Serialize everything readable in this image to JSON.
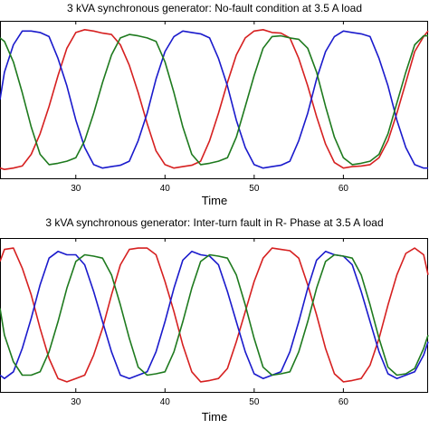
{
  "chart_data": [
    {
      "type": "line",
      "title": "3 kVA synchronous generator: No-fault condition at 3.5 A load",
      "xlabel": "Time",
      "ylabel": "",
      "xlim": [
        21.5,
        69.5
      ],
      "ylim": [
        -1.15,
        1.15
      ],
      "xticks": [
        30,
        40,
        50,
        60
      ],
      "grid": false,
      "series": [
        {
          "color": "#d62020",
          "x": [
            21.5,
            22,
            23,
            24,
            25,
            26,
            27,
            28,
            29,
            30,
            31,
            32,
            33,
            34,
            35,
            36,
            37,
            38,
            39,
            40,
            41,
            42,
            43,
            44,
            45,
            46,
            47,
            48,
            49,
            50,
            51,
            52,
            53,
            54,
            55,
            56,
            57,
            58,
            59,
            60,
            61,
            62,
            63,
            64,
            65,
            66,
            67,
            68,
            69,
            69.5
          ],
          "y": [
            -1.0,
            -1.02,
            -1.0,
            -0.97,
            -0.8,
            -0.5,
            -0.1,
            0.35,
            0.75,
            0.98,
            1.02,
            1.0,
            0.97,
            0.95,
            0.8,
            0.5,
            0.1,
            -0.35,
            -0.75,
            -0.95,
            -1.0,
            -0.98,
            -0.96,
            -0.9,
            -0.6,
            -0.2,
            0.25,
            0.65,
            0.9,
            1.0,
            1.02,
            0.98,
            0.97,
            0.9,
            0.6,
            0.2,
            -0.25,
            -0.65,
            -0.92,
            -1.0,
            -0.98,
            -0.97,
            -0.95,
            -0.85,
            -0.6,
            -0.2,
            0.25,
            0.7,
            0.92,
            1.0
          ]
        },
        {
          "color": "#1a1acc",
          "x": [
            21.5,
            22,
            23,
            24,
            25,
            26,
            27,
            28,
            29,
            30,
            31,
            32,
            33,
            34,
            35,
            36,
            37,
            38,
            39,
            40,
            41,
            42,
            43,
            44,
            45,
            46,
            47,
            48,
            49,
            50,
            51,
            52,
            53,
            54,
            55,
            56,
            57,
            58,
            59,
            60,
            61,
            62,
            63,
            64,
            65,
            66,
            67,
            68,
            69,
            69.5
          ],
          "y": [
            0.0,
            0.4,
            0.8,
            1.0,
            1.0,
            0.98,
            0.92,
            0.6,
            0.2,
            -0.3,
            -0.7,
            -0.95,
            -1.0,
            -0.98,
            -0.96,
            -0.9,
            -0.6,
            -0.2,
            0.3,
            0.7,
            0.92,
            1.0,
            0.98,
            0.96,
            0.9,
            0.6,
            0.2,
            -0.3,
            -0.7,
            -0.95,
            -1.0,
            -0.98,
            -0.96,
            -0.9,
            -0.6,
            -0.2,
            0.3,
            0.7,
            0.92,
            1.0,
            0.98,
            0.96,
            0.92,
            0.6,
            0.2,
            -0.3,
            -0.7,
            -0.95,
            -1.0,
            -1.0
          ]
        },
        {
          "color": "#1e7a1e",
          "x": [
            21.5,
            22,
            23,
            24,
            25,
            26,
            27,
            28,
            29,
            30,
            31,
            32,
            33,
            34,
            35,
            36,
            37,
            38,
            39,
            40,
            41,
            42,
            43,
            44,
            45,
            46,
            47,
            48,
            49,
            50,
            51,
            52,
            53,
            54,
            55,
            56,
            57,
            58,
            59,
            60,
            61,
            62,
            63,
            64,
            65,
            66,
            67,
            68,
            69,
            69.5
          ],
          "y": [
            0.9,
            0.85,
            0.55,
            0.1,
            -0.4,
            -0.8,
            -0.95,
            -0.93,
            -0.9,
            -0.85,
            -0.6,
            -0.2,
            0.25,
            0.65,
            0.9,
            0.95,
            0.93,
            0.9,
            0.85,
            0.55,
            0.1,
            -0.4,
            -0.8,
            -0.95,
            -0.93,
            -0.9,
            -0.85,
            -0.55,
            -0.1,
            0.35,
            0.75,
            0.92,
            0.93,
            0.9,
            0.88,
            0.75,
            0.4,
            -0.1,
            -0.55,
            -0.85,
            -0.95,
            -0.93,
            -0.9,
            -0.8,
            -0.5,
            -0.05,
            0.4,
            0.8,
            0.93,
            0.93
          ]
        }
      ]
    },
    {
      "type": "line",
      "title": "3 kVA synchronous generator: Inter-turn fault in R- Phase  at 3.5 A load",
      "xlabel": "Time",
      "ylabel": "",
      "xlim": [
        21.5,
        69.5
      ],
      "ylim": [
        -1.15,
        1.15
      ],
      "xticks": [
        30,
        40,
        50,
        60
      ],
      "grid": false,
      "series": [
        {
          "color": "#d62020",
          "x": [
            21.5,
            22,
            23,
            24,
            25,
            26,
            27,
            28,
            29,
            30,
            31,
            32,
            33,
            34,
            35,
            36,
            37,
            38,
            39,
            40,
            41,
            42,
            43,
            44,
            45,
            46,
            47,
            48,
            49,
            50,
            51,
            52,
            53,
            54,
            55,
            56,
            57,
            58,
            59,
            60,
            61,
            62,
            63,
            64,
            65,
            66,
            67,
            68,
            69,
            69.5
          ],
          "y": [
            0.8,
            0.98,
            1.0,
            0.7,
            0.3,
            -0.2,
            -0.65,
            -0.95,
            -1.0,
            -0.95,
            -0.9,
            -0.6,
            -0.2,
            0.3,
            0.75,
            0.98,
            1.0,
            1.0,
            0.9,
            0.5,
            0.05,
            -0.45,
            -0.85,
            -1.0,
            -0.98,
            -0.95,
            -0.8,
            -0.4,
            0.05,
            0.5,
            0.85,
            1.0,
            0.98,
            0.96,
            0.85,
            0.45,
            0.0,
            -0.5,
            -0.88,
            -1.0,
            -0.98,
            -0.95,
            -0.75,
            -0.35,
            0.15,
            0.6,
            0.92,
            1.0,
            0.9,
            0.6
          ]
        },
        {
          "color": "#1a1acc",
          "x": [
            21.5,
            22,
            23,
            24,
            25,
            26,
            27,
            28,
            29,
            30,
            31,
            32,
            33,
            34,
            35,
            36,
            37,
            38,
            39,
            40,
            41,
            42,
            43,
            44,
            45,
            46,
            47,
            48,
            49,
            50,
            51,
            52,
            53,
            54,
            55,
            56,
            57,
            58,
            59,
            60,
            61,
            62,
            63,
            64,
            65,
            66,
            67,
            68,
            69,
            69.5
          ],
          "y": [
            -0.9,
            -0.95,
            -0.85,
            -0.5,
            -0.05,
            0.45,
            0.85,
            0.95,
            0.9,
            0.9,
            0.75,
            0.35,
            -0.1,
            -0.55,
            -0.9,
            -0.95,
            -0.9,
            -0.85,
            -0.55,
            -0.1,
            0.4,
            0.82,
            0.95,
            0.9,
            0.88,
            0.75,
            0.35,
            -0.1,
            -0.55,
            -0.88,
            -0.95,
            -0.9,
            -0.85,
            -0.55,
            -0.1,
            0.4,
            0.82,
            0.95,
            0.9,
            0.88,
            0.75,
            0.35,
            -0.1,
            -0.55,
            -0.88,
            -0.95,
            -0.9,
            -0.85,
            -0.6,
            -0.4
          ]
        },
        {
          "color": "#1e7a1e",
          "x": [
            21.5,
            22,
            23,
            24,
            25,
            26,
            27,
            28,
            29,
            30,
            31,
            32,
            33,
            34,
            35,
            36,
            37,
            38,
            39,
            40,
            41,
            42,
            43,
            44,
            45,
            46,
            47,
            48,
            49,
            50,
            51,
            52,
            53,
            54,
            55,
            56,
            57,
            58,
            59,
            60,
            61,
            62,
            63,
            64,
            65,
            66,
            67,
            68,
            69,
            69.5
          ],
          "y": [
            0.1,
            -0.3,
            -0.7,
            -0.9,
            -0.9,
            -0.85,
            -0.55,
            -0.1,
            0.4,
            0.8,
            0.9,
            0.88,
            0.85,
            0.6,
            0.15,
            -0.35,
            -0.78,
            -0.9,
            -0.88,
            -0.85,
            -0.55,
            -0.1,
            0.4,
            0.8,
            0.9,
            0.88,
            0.85,
            0.6,
            0.15,
            -0.35,
            -0.78,
            -0.9,
            -0.88,
            -0.85,
            -0.55,
            -0.1,
            0.4,
            0.8,
            0.9,
            0.88,
            0.85,
            0.6,
            0.15,
            -0.35,
            -0.78,
            -0.9,
            -0.88,
            -0.8,
            -0.5,
            -0.3
          ]
        }
      ]
    }
  ]
}
